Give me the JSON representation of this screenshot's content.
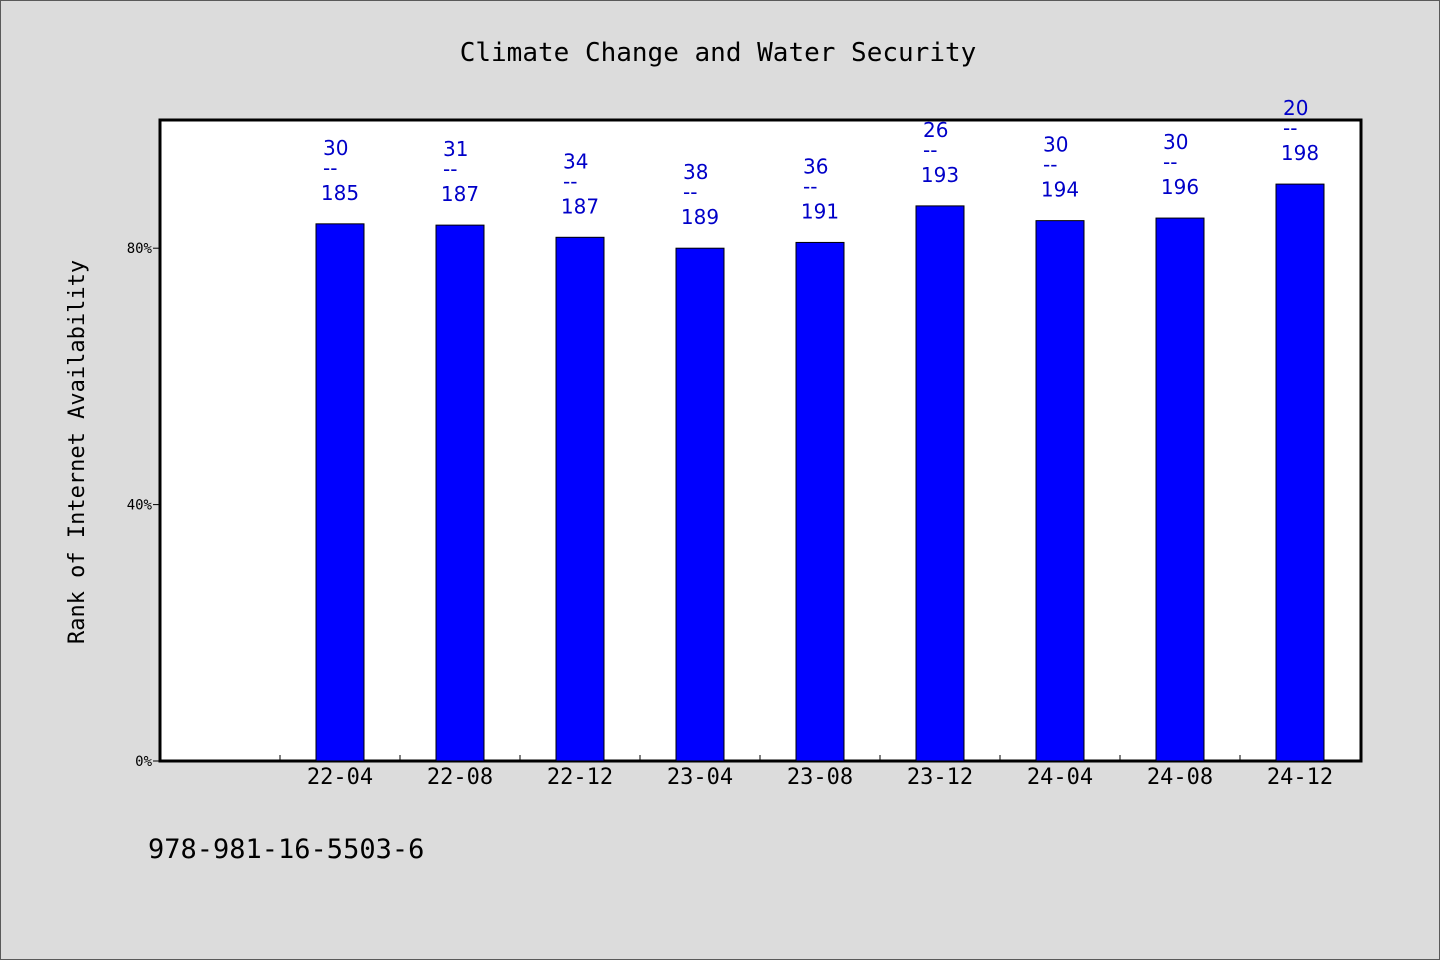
{
  "footer": {
    "isbn": "978-981-16-5503-6"
  },
  "colors": {
    "bar": "#0000ff",
    "bar_stroke": "#000000",
    "label": "#0000c8",
    "plot_bg": "#ffffff",
    "page_bg": "#dcdcdc"
  },
  "chart_data": {
    "type": "bar",
    "title": "Climate Change and Water Security",
    "xlabel": "",
    "ylabel": "Rank of Internet Availability",
    "ylim": [
      0,
      100
    ],
    "yticks": [
      0,
      40,
      80
    ],
    "ytick_labels": [
      "0%",
      "40%",
      "80%"
    ],
    "categories": [
      "22-04",
      "22-08",
      "22-12",
      "23-04",
      "23-08",
      "23-12",
      "24-04",
      "24-08",
      "24-12"
    ],
    "values": [
      83.8,
      83.6,
      81.7,
      80.0,
      80.9,
      86.6,
      84.3,
      84.7,
      90.0
    ],
    "data_labels": [
      {
        "top": "30",
        "sep": "--",
        "bottom": "185"
      },
      {
        "top": "31",
        "sep": "--",
        "bottom": "187"
      },
      {
        "top": "34",
        "sep": "--",
        "bottom": "187"
      },
      {
        "top": "38",
        "sep": "--",
        "bottom": "189"
      },
      {
        "top": "36",
        "sep": "--",
        "bottom": "191"
      },
      {
        "top": "26",
        "sep": "--",
        "bottom": "193"
      },
      {
        "top": "30",
        "sep": "--",
        "bottom": "194"
      },
      {
        "top": "30",
        "sep": "--",
        "bottom": "196"
      },
      {
        "top": "20",
        "sep": "--",
        "bottom": "198"
      }
    ],
    "grid": false,
    "legend": "none"
  }
}
